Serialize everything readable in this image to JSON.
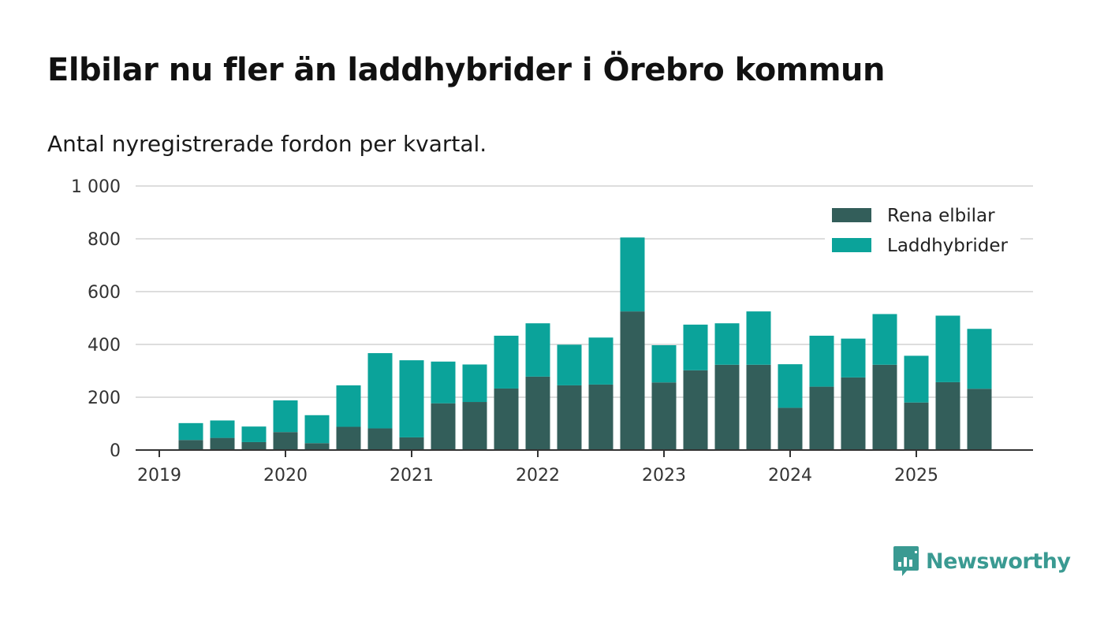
{
  "title": "Elbilar nu fler än laddhybrider i Örebro kommun",
  "subtitle": "Antal nyregistrerade fordon per kvartal.",
  "brand": {
    "name": "Newsworthy",
    "icon": "newsworthy-logo-icon",
    "color": "#3a9a92"
  },
  "colors": {
    "electric": "#335e5a",
    "hybrid": "#0ba39a",
    "grid": "#dddddd",
    "axis": "#333333"
  },
  "chart_data": {
    "type": "bar",
    "stacked": true,
    "title": "Elbilar nu fler än laddhybrider i Örebro kommun",
    "subtitle": "Antal nyregistrerade fordon per kvartal.",
    "xlabel": "",
    "ylabel": "",
    "ylim": [
      0,
      1000
    ],
    "yticks": [
      0,
      200,
      400,
      600,
      800,
      1000
    ],
    "ytick_labels": [
      "0",
      "200",
      "400",
      "600",
      "800",
      "1 000"
    ],
    "xtick_labels": [
      "2019",
      "2020",
      "2021",
      "2022",
      "2023",
      "2024",
      "2025"
    ],
    "legend_position": "top-right",
    "categories": [
      "2019 Q2",
      "2019 Q3",
      "2019 Q4",
      "2020 Q1",
      "2020 Q2",
      "2020 Q3",
      "2020 Q4",
      "2021 Q1",
      "2021 Q2",
      "2021 Q3",
      "2021 Q4",
      "2022 Q1",
      "2022 Q2",
      "2022 Q3",
      "2022 Q4",
      "2023 Q1",
      "2023 Q2",
      "2023 Q3",
      "2023 Q4",
      "2024 Q1",
      "2024 Q2",
      "2024 Q3",
      "2024 Q4",
      "2025 Q1",
      "2025 Q2",
      "2025 Q3"
    ],
    "series": [
      {
        "name": "Rena elbilar",
        "values": [
          38,
          46,
          30,
          68,
          26,
          88,
          82,
          48,
          177,
          182,
          233,
          278,
          245,
          248,
          525,
          256,
          302,
          323,
          323,
          160,
          240,
          275,
          323,
          180,
          257,
          232
        ]
      },
      {
        "name": "Laddhybrider",
        "values": [
          64,
          66,
          59,
          120,
          106,
          157,
          285,
          292,
          158,
          142,
          200,
          202,
          154,
          178,
          280,
          141,
          173,
          157,
          202,
          165,
          193,
          147,
          192,
          177,
          252,
          227
        ]
      }
    ]
  }
}
